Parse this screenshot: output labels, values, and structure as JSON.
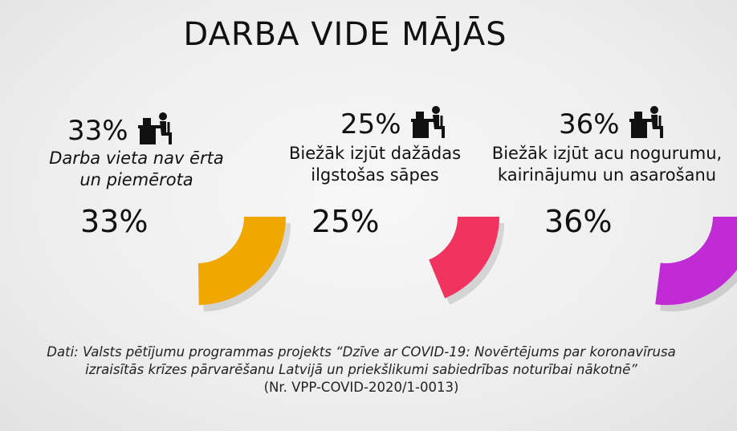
{
  "title": "DARBA VIDE MĀJĀS",
  "chart_data": {
    "type": "pie",
    "title": "DARBA VIDE MĀJĀS",
    "unit": "%",
    "items": [
      {
        "percent_label": "33%",
        "value": 33,
        "description_line1": "Darba vieta nav ērta",
        "description_line2": "un piemērota",
        "color": "#f0a800"
      },
      {
        "percent_label": "25%",
        "value": 25,
        "description_line1": "Biežāk izjūt dažādas",
        "description_line2": "ilgstošas sāpes",
        "color": "#f0335f"
      },
      {
        "percent_label": "36%",
        "value": 36,
        "description_line1": "Biežāk izjūt acu nogurumu,",
        "description_line2": "kairinājumu un asarošanu",
        "color": "#c02bd6"
      }
    ]
  },
  "footer": {
    "source_label": "Dati:",
    "line1_rest": "Valsts pētījumu programmas projekts “Dzīve ar COVID-19: Novērtējums par koronavīrusa",
    "line2": "izraisītās krīzes pārvarēšanu Latvijā un priekšlikumi sabiedrības noturībai nākotnē”",
    "line3": "(Nr. VPP-COVID-2020/1-0013)"
  },
  "icons": [
    "person-at-desk-icon"
  ]
}
